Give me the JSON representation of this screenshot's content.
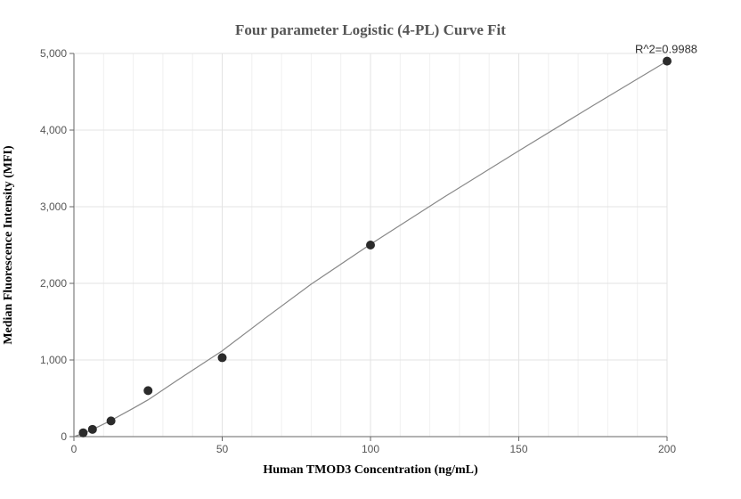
{
  "chart_data": {
    "type": "scatter",
    "title": "Four parameter Logistic (4-PL) Curve Fit",
    "xlabel": "Human TMOD3 Concentration (ng/mL)",
    "ylabel": "Median Fluorescence Intensity (MFI)",
    "xlim": [
      0,
      200
    ],
    "ylim": [
      0,
      5000
    ],
    "x_ticks": [
      0,
      50,
      100,
      150,
      200
    ],
    "x_tick_labels": [
      "0",
      "50",
      "100",
      "150",
      "200"
    ],
    "y_ticks": [
      0,
      1000,
      2000,
      3000,
      4000,
      5000
    ],
    "y_tick_labels": [
      "0",
      "1,000",
      "2,000",
      "3,000",
      "4,000",
      "5,000"
    ],
    "grid": true,
    "series": [
      {
        "points": [
          {
            "x": 3.125,
            "y": 50
          },
          {
            "x": 6.25,
            "y": 95
          },
          {
            "x": 12.5,
            "y": 205
          },
          {
            "x": 25,
            "y": 600
          },
          {
            "x": 50,
            "y": 1030
          },
          {
            "x": 100,
            "y": 2500
          },
          {
            "x": 200,
            "y": 4900
          }
        ]
      }
    ],
    "fit_curve": {
      "x": [
        0,
        3.125,
        6.25,
        12.5,
        20,
        25,
        35,
        50,
        65,
        80,
        100,
        125,
        150,
        175,
        200
      ],
      "y": [
        0,
        42,
        92,
        210,
        370,
        480,
        740,
        1120,
        1560,
        1990,
        2510,
        3130,
        3730,
        4320,
        4900
      ]
    },
    "annotation": "R^2=0.9988",
    "colors": {
      "points": "#2b2b2b",
      "curve": "#888888",
      "grid": "#e3e3e3"
    }
  }
}
